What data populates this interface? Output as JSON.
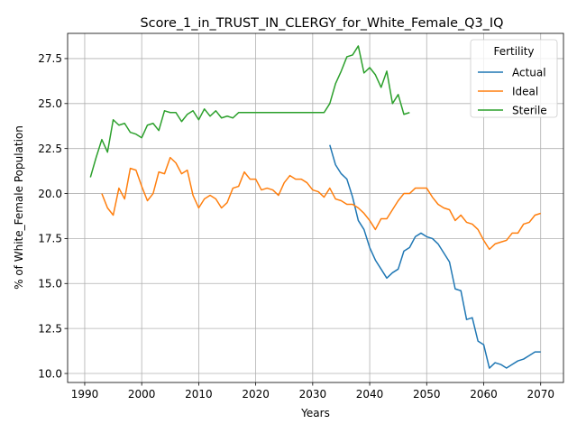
{
  "chart_data": {
    "type": "line",
    "title": "Score_1_in_TRUST_IN_CLERGY_for_White_Female_Q3_IQ",
    "xlabel": "Years",
    "ylabel": "% of White_Female Population",
    "xlim": [
      1987,
      2074
    ],
    "ylim": [
      9.5,
      28.9
    ],
    "x_ticks": [
      1990,
      2000,
      2010,
      2020,
      2030,
      2040,
      2050,
      2060,
      2070
    ],
    "y_ticks": [
      10.0,
      12.5,
      15.0,
      17.5,
      20.0,
      22.5,
      25.0,
      27.5
    ],
    "x_tick_labels": [
      "1990",
      "2000",
      "2010",
      "2020",
      "2030",
      "2040",
      "2050",
      "2060",
      "2070"
    ],
    "y_tick_labels": [
      "10.0",
      "12.5",
      "15.0",
      "17.5",
      "20.0",
      "22.5",
      "25.0",
      "27.5"
    ],
    "grid": true,
    "legend": {
      "title": "Fertility",
      "position": "top-right"
    },
    "series": [
      {
        "name": "Actual",
        "color": "#1f77b4",
        "points": [
          [
            2033,
            22.7
          ],
          [
            2034,
            21.6
          ],
          [
            2035,
            21.1
          ],
          [
            2036,
            20.8
          ],
          [
            2037,
            19.8
          ],
          [
            2038,
            18.5
          ],
          [
            2039,
            18.0
          ],
          [
            2040,
            17.0
          ],
          [
            2041,
            16.3
          ],
          [
            2042,
            15.8
          ],
          [
            2043,
            15.3
          ],
          [
            2044,
            15.6
          ],
          [
            2045,
            15.8
          ],
          [
            2046,
            16.8
          ],
          [
            2047,
            17.0
          ],
          [
            2048,
            17.6
          ],
          [
            2049,
            17.8
          ],
          [
            2050,
            17.6
          ],
          [
            2051,
            17.5
          ],
          [
            2052,
            17.2
          ],
          [
            2053,
            16.7
          ],
          [
            2054,
            16.2
          ],
          [
            2055,
            14.7
          ],
          [
            2056,
            14.6
          ],
          [
            2057,
            13.0
          ],
          [
            2058,
            13.1
          ],
          [
            2059,
            11.8
          ],
          [
            2060,
            11.6
          ],
          [
            2061,
            10.3
          ],
          [
            2062,
            10.6
          ],
          [
            2063,
            10.5
          ],
          [
            2064,
            10.3
          ],
          [
            2065,
            10.5
          ],
          [
            2066,
            10.7
          ],
          [
            2067,
            10.8
          ],
          [
            2068,
            11.0
          ],
          [
            2069,
            11.2
          ],
          [
            2070,
            11.2
          ]
        ]
      },
      {
        "name": "Ideal",
        "color": "#ff7f0e",
        "points": [
          [
            1993,
            20.0
          ],
          [
            1994,
            19.2
          ],
          [
            1995,
            18.8
          ],
          [
            1996,
            20.3
          ],
          [
            1997,
            19.7
          ],
          [
            1998,
            21.4
          ],
          [
            1999,
            21.3
          ],
          [
            2000,
            20.4
          ],
          [
            2001,
            19.6
          ],
          [
            2002,
            20.0
          ],
          [
            2003,
            21.2
          ],
          [
            2004,
            21.1
          ],
          [
            2005,
            22.0
          ],
          [
            2006,
            21.7
          ],
          [
            2007,
            21.1
          ],
          [
            2008,
            21.3
          ],
          [
            2009,
            19.9
          ],
          [
            2010,
            19.2
          ],
          [
            2011,
            19.7
          ],
          [
            2012,
            19.9
          ],
          [
            2013,
            19.7
          ],
          [
            2014,
            19.2
          ],
          [
            2015,
            19.5
          ],
          [
            2016,
            20.3
          ],
          [
            2017,
            20.4
          ],
          [
            2018,
            21.2
          ],
          [
            2019,
            20.8
          ],
          [
            2020,
            20.8
          ],
          [
            2021,
            20.2
          ],
          [
            2022,
            20.3
          ],
          [
            2023,
            20.2
          ],
          [
            2024,
            19.9
          ],
          [
            2025,
            20.6
          ],
          [
            2026,
            21.0
          ],
          [
            2027,
            20.8
          ],
          [
            2028,
            20.8
          ],
          [
            2029,
            20.6
          ],
          [
            2030,
            20.2
          ],
          [
            2031,
            20.1
          ],
          [
            2032,
            19.8
          ],
          [
            2033,
            20.3
          ],
          [
            2034,
            19.7
          ],
          [
            2035,
            19.6
          ],
          [
            2036,
            19.4
          ],
          [
            2037,
            19.4
          ],
          [
            2038,
            19.2
          ],
          [
            2039,
            18.9
          ],
          [
            2040,
            18.5
          ],
          [
            2041,
            18.0
          ],
          [
            2042,
            18.6
          ],
          [
            2043,
            18.6
          ],
          [
            2044,
            19.1
          ],
          [
            2045,
            19.6
          ],
          [
            2046,
            20.0
          ],
          [
            2047,
            20.0
          ],
          [
            2048,
            20.3
          ],
          [
            2049,
            20.3
          ],
          [
            2050,
            20.3
          ],
          [
            2051,
            19.8
          ],
          [
            2052,
            19.4
          ],
          [
            2053,
            19.2
          ],
          [
            2054,
            19.1
          ],
          [
            2055,
            18.5
          ],
          [
            2056,
            18.8
          ],
          [
            2057,
            18.4
          ],
          [
            2058,
            18.3
          ],
          [
            2059,
            18.0
          ],
          [
            2060,
            17.4
          ],
          [
            2061,
            16.9
          ],
          [
            2062,
            17.2
          ],
          [
            2063,
            17.3
          ],
          [
            2064,
            17.4
          ],
          [
            2065,
            17.8
          ],
          [
            2066,
            17.8
          ],
          [
            2067,
            18.3
          ],
          [
            2068,
            18.4
          ],
          [
            2069,
            18.8
          ],
          [
            2070,
            18.9
          ]
        ]
      },
      {
        "name": "Sterile",
        "color": "#2ca02c",
        "points": [
          [
            1991,
            20.9
          ],
          [
            1992,
            22.0
          ],
          [
            1993,
            23.0
          ],
          [
            1994,
            22.3
          ],
          [
            1995,
            24.1
          ],
          [
            1996,
            23.8
          ],
          [
            1997,
            23.9
          ],
          [
            1998,
            23.4
          ],
          [
            1999,
            23.3
          ],
          [
            2000,
            23.1
          ],
          [
            2001,
            23.8
          ],
          [
            2002,
            23.9
          ],
          [
            2003,
            23.5
          ],
          [
            2004,
            24.6
          ],
          [
            2005,
            24.5
          ],
          [
            2006,
            24.5
          ],
          [
            2007,
            24.0
          ],
          [
            2008,
            24.4
          ],
          [
            2009,
            24.6
          ],
          [
            2010,
            24.1
          ],
          [
            2011,
            24.7
          ],
          [
            2012,
            24.3
          ],
          [
            2013,
            24.6
          ],
          [
            2014,
            24.2
          ],
          [
            2015,
            24.3
          ],
          [
            2016,
            24.2
          ],
          [
            2017,
            24.5
          ],
          [
            2018,
            24.5
          ],
          [
            2019,
            24.5
          ],
          [
            2020,
            24.5
          ],
          [
            2021,
            24.5
          ],
          [
            2022,
            24.5
          ],
          [
            2023,
            24.5
          ],
          [
            2024,
            24.5
          ],
          [
            2025,
            24.5
          ],
          [
            2026,
            24.5
          ],
          [
            2027,
            24.5
          ],
          [
            2028,
            24.5
          ],
          [
            2029,
            24.5
          ],
          [
            2030,
            24.5
          ],
          [
            2031,
            24.5
          ],
          [
            2032,
            24.5
          ],
          [
            2033,
            25.0
          ],
          [
            2034,
            26.1
          ],
          [
            2035,
            26.8
          ],
          [
            2036,
            27.6
          ],
          [
            2037,
            27.7
          ],
          [
            2038,
            28.2
          ],
          [
            2039,
            26.7
          ],
          [
            2040,
            27.0
          ],
          [
            2041,
            26.6
          ],
          [
            2042,
            25.9
          ],
          [
            2043,
            26.8
          ],
          [
            2044,
            25.0
          ],
          [
            2045,
            25.5
          ],
          [
            2046,
            24.4
          ],
          [
            2047,
            24.5
          ]
        ]
      }
    ]
  }
}
